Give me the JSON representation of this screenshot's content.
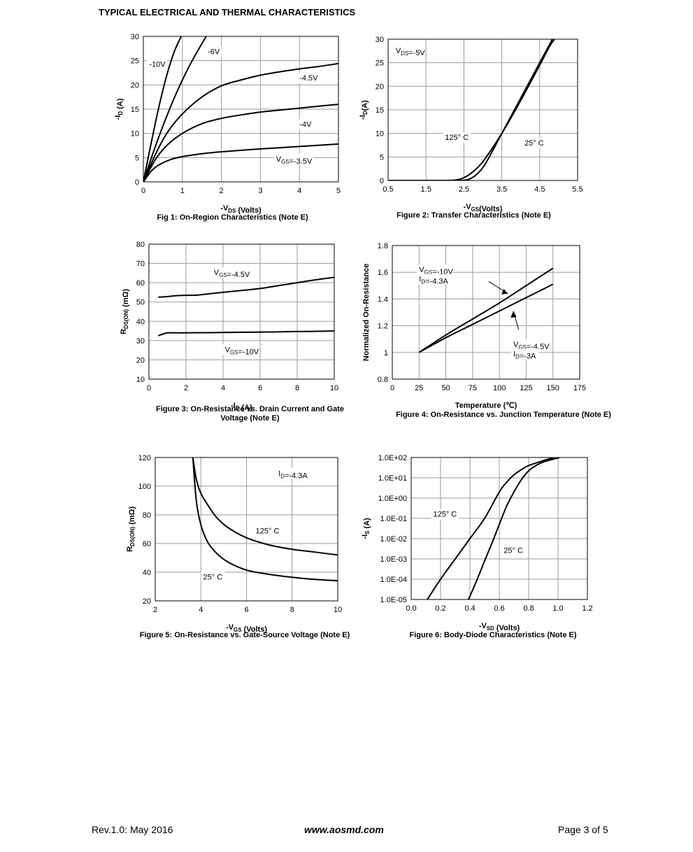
{
  "heading": "TYPICAL ELECTRICAL AND THERMAL CHARACTERISTICS",
  "footer": {
    "rev": "Rev.1.0: May 2016",
    "url": "www.aosmd.com",
    "page": "Page 3 of 5"
  },
  "chart_data": [
    {
      "id": "fig1",
      "type": "line",
      "title": "Fig 1: On-Region Characteristics (Note E)",
      "xlabel": "-VDS (Volts)",
      "ylabel": "-ID (A)",
      "xlim": [
        0,
        5
      ],
      "ylim": [
        0,
        30
      ],
      "xticks": [
        0,
        1,
        2,
        3,
        4,
        5
      ],
      "yticks": [
        0,
        5,
        10,
        15,
        20,
        25,
        30
      ],
      "series": [
        {
          "name": "-10V",
          "x": [
            0,
            0.2,
            0.4,
            0.6,
            0.8,
            1.0
          ],
          "y": [
            0,
            8,
            15.5,
            22,
            27,
            30.5
          ]
        },
        {
          "name": "-6V",
          "x": [
            0,
            0.25,
            0.5,
            0.75,
            1.0,
            1.25,
            1.5,
            1.65
          ],
          "y": [
            0,
            6,
            11.5,
            16.5,
            21,
            25,
            28.5,
            30.5
          ]
        },
        {
          "name": "-4.5V",
          "x": [
            0,
            0.3,
            0.6,
            1,
            1.5,
            2,
            2.5,
            3,
            3.5,
            4,
            4.5,
            5
          ],
          "y": [
            0,
            5.5,
            10,
            14,
            17.5,
            19.8,
            21,
            22,
            22.7,
            23.3,
            23.8,
            24.4
          ]
        },
        {
          "name": "-4V",
          "x": [
            0,
            0.3,
            0.6,
            1,
            1.5,
            2,
            2.5,
            3,
            3.5,
            4,
            4.5,
            5
          ],
          "y": [
            0,
            4.5,
            7.5,
            10,
            12,
            13.1,
            13.8,
            14.4,
            14.8,
            15.2,
            15.6,
            16
          ]
        },
        {
          "name": "VGS=-3.5V",
          "x": [
            0,
            0.2,
            0.4,
            0.7,
            1,
            1.5,
            2,
            3,
            4,
            5
          ],
          "y": [
            0,
            2.2,
            3.5,
            4.6,
            5.2,
            5.8,
            6.2,
            6.8,
            7.3,
            7.8
          ]
        }
      ],
      "labels": [
        {
          "text": "-10V",
          "x": 0.15,
          "y": 23.7
        },
        {
          "text": "-6V",
          "x": 1.65,
          "y": 26.3
        },
        {
          "text": "-4.5V",
          "x": 4.0,
          "y": 20.9
        },
        {
          "text": "-4V",
          "x": 4.0,
          "y": 11.3
        },
        {
          "text": "VGS=-3.5V",
          "x": 3.4,
          "y": 4.2
        }
      ]
    },
    {
      "id": "fig2",
      "type": "line",
      "title": "Figure 2: Transfer Characteristics (Note E)",
      "xlabel": "-VGS(Volts)",
      "ylabel": "-ID(A)",
      "xlim": [
        0.5,
        5.5
      ],
      "ylim": [
        0,
        30
      ],
      "xticks": [
        0.5,
        1.5,
        2.5,
        3.5,
        4.5,
        5.5
      ],
      "yticks": [
        0,
        5,
        10,
        15,
        20,
        25,
        30
      ],
      "series": [
        {
          "name": "125° C",
          "x": [
            0.5,
            1.5,
            2,
            2.3,
            2.5,
            2.7,
            3,
            3.5,
            4,
            4.5,
            4.8,
            5.0
          ],
          "y": [
            0,
            0,
            0,
            0.1,
            0.6,
            1.6,
            4,
            10,
            17,
            24.5,
            29,
            31
          ]
        },
        {
          "name": "25° C",
          "x": [
            0.5,
            2,
            2.5,
            2.7,
            2.9,
            3.1,
            3.5,
            4,
            4.5,
            4.9
          ],
          "y": [
            0,
            0,
            0.05,
            0.5,
            1.8,
            4,
            10,
            17.5,
            25,
            31
          ]
        }
      ],
      "labels": [
        {
          "text": "VDS=-5V",
          "x": 0.7,
          "y": 27
        },
        {
          "text": "125° C",
          "x": 2.0,
          "y": 8.6
        },
        {
          "text": "25° C",
          "x": 4.1,
          "y": 7.4
        }
      ]
    },
    {
      "id": "fig3",
      "type": "line",
      "title": "Figure 3: On-Resistance vs. Drain Current and Gate Voltage (Note E)",
      "xlabel": "-ID (A)",
      "ylabel": "RDS(ON) (mΩ)",
      "xlim": [
        0,
        10
      ],
      "ylim": [
        10,
        80
      ],
      "xticks": [
        0,
        2,
        4,
        6,
        8,
        10
      ],
      "yticks": [
        10,
        20,
        30,
        40,
        50,
        60,
        70,
        80
      ],
      "series": [
        {
          "name": "VGS=-4.5V",
          "x": [
            0.5,
            1,
            1.5,
            2,
            2.5,
            3,
            4,
            5,
            6,
            7,
            8,
            9,
            10
          ],
          "y": [
            52.5,
            52.8,
            53.3,
            53.5,
            53.5,
            54,
            55,
            56,
            57,
            58.5,
            60,
            61.5,
            62.8
          ]
        },
        {
          "name": "VGS=-10V",
          "x": [
            0.5,
            0.8,
            1,
            1.5,
            2,
            3,
            4,
            5,
            6,
            7,
            8,
            9,
            10
          ],
          "y": [
            32.5,
            33.5,
            34,
            34,
            34,
            34.1,
            34.2,
            34.3,
            34.4,
            34.5,
            34.7,
            34.8,
            35
          ]
        }
      ],
      "labels": [
        {
          "text": "VGS=-4.5V",
          "x": 3.5,
          "y": 64
        },
        {
          "text": "VGS=-10V",
          "x": 4.1,
          "y": 24
        }
      ]
    },
    {
      "id": "fig4",
      "type": "line",
      "title": "Figure 4: On-Resistance vs. Junction Temperature (Note E)",
      "xlabel": "Temperature (℃)",
      "ylabel": "Normalized On-Resistance",
      "xlim": [
        0,
        175
      ],
      "ylim": [
        0.8,
        1.8
      ],
      "xticks": [
        0,
        25,
        50,
        75,
        100,
        125,
        150,
        175
      ],
      "yticks": [
        0.8,
        1,
        1.2,
        1.4,
        1.6,
        1.8
      ],
      "series": [
        {
          "name": "VGS=-10V ID=-4.3A",
          "x": [
            25,
            50,
            75,
            100,
            125,
            150
          ],
          "y": [
            1.0,
            1.13,
            1.25,
            1.37,
            1.5,
            1.63
          ]
        },
        {
          "name": "VGS=-4.5V ID=-3A",
          "x": [
            25,
            50,
            75,
            100,
            125,
            150
          ],
          "y": [
            1.0,
            1.11,
            1.21,
            1.31,
            1.41,
            1.51
          ]
        }
      ],
      "labels": [
        {
          "text": "VGS=-10V",
          "x": 25,
          "y": 1.6
        },
        {
          "text": "ID=-4.3A",
          "x": 25,
          "y": 1.53
        },
        {
          "text": "VGS=-4.5V",
          "x": 113,
          "y": 1.04
        },
        {
          "text": "ID=-3A",
          "x": 113,
          "y": 0.97
        }
      ]
    },
    {
      "id": "fig5",
      "type": "line",
      "title": "Figure 5: On-Resistance vs. Gate-Source Voltage (Note E)",
      "xlabel": "-VGS (Volts)",
      "ylabel": "RDS(ON) (mΩ)",
      "xlim": [
        2,
        10
      ],
      "ylim": [
        20,
        120
      ],
      "xticks": [
        2,
        4,
        6,
        8,
        10
      ],
      "yticks": [
        20,
        40,
        60,
        80,
        100,
        120
      ],
      "series": [
        {
          "name": "125° C",
          "x": [
            3.65,
            3.8,
            4,
            4.3,
            4.7,
            5.2,
            6,
            7,
            8,
            9,
            10
          ],
          "y": [
            120,
            105,
            95,
            87,
            78,
            71,
            64,
            59,
            56,
            54,
            52
          ]
        },
        {
          "name": "25° C",
          "x": [
            3.65,
            3.8,
            4,
            4.3,
            4.7,
            5.2,
            6,
            7,
            8,
            9,
            10
          ],
          "y": [
            120,
            90,
            73,
            61,
            53,
            47,
            41.5,
            38.5,
            36.5,
            35,
            34
          ]
        }
      ],
      "labels": [
        {
          "text": "ID=-4.3A",
          "x": 7.4,
          "y": 107
        },
        {
          "text": "125° C",
          "x": 6.4,
          "y": 67
        },
        {
          "text": "25° C",
          "x": 4.1,
          "y": 35
        }
      ]
    },
    {
      "id": "fig6",
      "type": "line",
      "title": "Figure 6: Body-Diode Characteristics (Note E)",
      "xlabel": "-VSD (Volts)",
      "ylabel": "-IS (A)",
      "yscale": "log",
      "xlim": [
        0,
        1.2
      ],
      "ylim": [
        1e-05,
        100
      ],
      "xticks": [
        0.0,
        0.2,
        0.4,
        0.6,
        0.8,
        1.0,
        1.2
      ],
      "yticks": [
        1e-05,
        0.0001,
        0.001,
        0.01,
        0.1,
        1,
        10,
        100
      ],
      "ytick_labels": [
        "1.0E-05",
        "1.0E-04",
        "1.0E-03",
        "1.0E-02",
        "1.0E-01",
        "1.0E+00",
        "1.0E+01",
        "1.0E+02"
      ],
      "xtick_labels": [
        "0.0",
        "0.2",
        "0.4",
        "0.6",
        "0.8",
        "1.0",
        "1.2"
      ],
      "series": [
        {
          "name": "125° C",
          "x": [
            0.11,
            0.2,
            0.3,
            0.4,
            0.5,
            0.6,
            0.65,
            0.7,
            0.75,
            0.8,
            0.9,
            0.97
          ],
          "y": [
            1e-05,
            0.0001,
            0.001,
            0.01,
            0.1,
            2,
            6,
            14,
            25,
            40,
            70,
            100
          ]
        },
        {
          "name": "25° C",
          "x": [
            0.39,
            0.45,
            0.5,
            0.55,
            0.6,
            0.65,
            0.7,
            0.75,
            0.8,
            0.85,
            0.9,
            1.01
          ],
          "y": [
            1e-05,
            0.0001,
            0.0008,
            0.006,
            0.05,
            0.4,
            2,
            8,
            22,
            40,
            60,
            100
          ]
        }
      ],
      "labels": [
        {
          "text": "125° C",
          "x": 0.15,
          "y": 0.12
        },
        {
          "text": "25° C",
          "x": 0.63,
          "y": 0.002
        }
      ]
    }
  ]
}
